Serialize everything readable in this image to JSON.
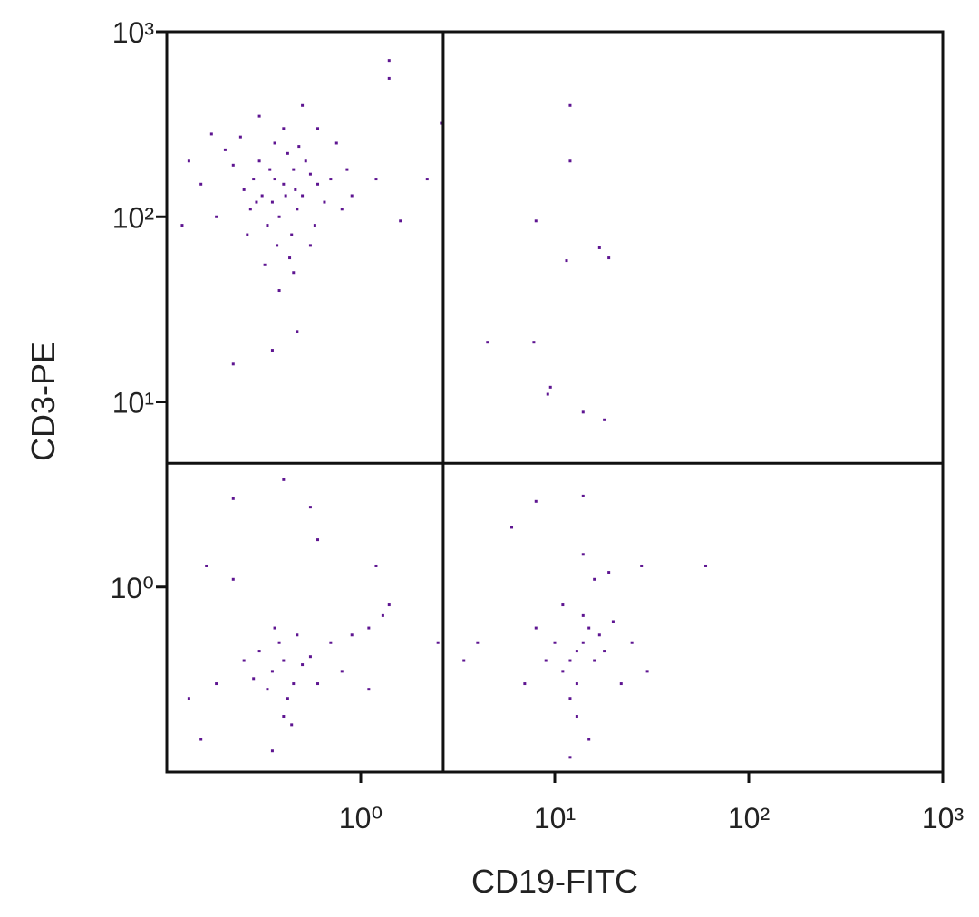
{
  "chart_data": {
    "type": "scatter",
    "x_label": "CD19-FITC",
    "y_label": "CD3-PE",
    "xscale": "log",
    "yscale": "log",
    "xlim": [
      0.1,
      1000
    ],
    "ylim": [
      0.1,
      1000
    ],
    "xticks": [
      {
        "value": 1,
        "label": "10⁰"
      },
      {
        "value": 10,
        "label": "10¹"
      },
      {
        "value": 100,
        "label": "10²"
      },
      {
        "value": 1000,
        "label": "10³"
      }
    ],
    "yticks": [
      {
        "value": 1,
        "label": "10⁰"
      },
      {
        "value": 10,
        "label": "10¹"
      },
      {
        "value": 100,
        "label": "10²"
      },
      {
        "value": 1000,
        "label": "10³"
      }
    ],
    "quadrant_gates": {
      "x": 2.66,
      "y": 4.66
    },
    "color": "#5e1591",
    "x": [
      0.4,
      0.35,
      0.45,
      0.3,
      0.5,
      0.38,
      0.42,
      0.28,
      0.55,
      0.33,
      0.47,
      0.25,
      0.6,
      0.36,
      0.44,
      0.31,
      0.52,
      0.4,
      0.22,
      0.65,
      0.37,
      0.48,
      0.27,
      0.58,
      0.34,
      0.43,
      0.2,
      0.7,
      0.15,
      0.18,
      0.13,
      0.75,
      0.8,
      0.3,
      0.5,
      0.26,
      0.45,
      0.38,
      0.6,
      0.17,
      0.12,
      0.85,
      0.32,
      0.9,
      0.24,
      0.55,
      0.41,
      0.36,
      0.46,
      0.29,
      1.4,
      1.4,
      2.6,
      2.2,
      1.6,
      0.22,
      0.35,
      0.47,
      1.2,
      12,
      12,
      8,
      17,
      19,
      11.5,
      4.5,
      7.8,
      9.5,
      9.2,
      14,
      18,
      0.4,
      0.35,
      0.45,
      0.3,
      0.5,
      0.42,
      0.38,
      0.28,
      0.55,
      0.33,
      0.47,
      0.25,
      0.6,
      0.4,
      0.36,
      0.44,
      0.7,
      0.9,
      1.1,
      1.3,
      1.4,
      0.15,
      0.18,
      0.13,
      0.8,
      0.22,
      0.4,
      0.55,
      0.6,
      1.2,
      0.16,
      0.35,
      2.5,
      1.1,
      0.22,
      13,
      12,
      14,
      11,
      15,
      13,
      16,
      10,
      17,
      12,
      14,
      11,
      18,
      13,
      15,
      12,
      20,
      9,
      8,
      22,
      16,
      14,
      7,
      25,
      30,
      19,
      60,
      14,
      8,
      6,
      4,
      3.4,
      28
    ],
    "y": [
      150,
      120,
      180,
      200,
      130,
      100,
      220,
      160,
      170,
      90,
      110,
      140,
      150,
      250,
      80,
      130,
      200,
      300,
      190,
      120,
      70,
      240,
      110,
      90,
      180,
      60,
      230,
      160,
      150,
      100,
      200,
      250,
      110,
      350,
      400,
      80,
      50,
      40,
      300,
      280,
      90,
      180,
      55,
      130,
      270,
      70,
      130,
      160,
      140,
      120,
      700,
      560,
      320,
      160,
      95,
      16,
      19,
      24,
      160,
      400,
      200,
      95,
      68,
      60,
      58,
      21,
      21,
      12,
      11,
      8.8,
      8,
      0.4,
      0.35,
      0.3,
      0.45,
      0.38,
      0.25,
      0.5,
      0.32,
      0.42,
      0.28,
      0.55,
      0.4,
      0.3,
      0.2,
      0.6,
      0.18,
      0.5,
      0.55,
      0.6,
      0.7,
      0.8,
      0.15,
      0.3,
      0.25,
      0.35,
      3,
      3.8,
      2.7,
      1.8,
      1.3,
      1.3,
      0.13,
      0.5,
      0.28,
      1.1,
      0.45,
      0.4,
      0.5,
      0.35,
      0.6,
      0.3,
      0.4,
      0.5,
      0.55,
      0.25,
      0.7,
      0.8,
      0.45,
      0.2,
      0.15,
      0.12,
      0.65,
      0.4,
      0.6,
      0.3,
      1.1,
      1.5,
      0.3,
      0.5,
      0.35,
      1.2,
      1.3,
      3.1,
      2.9,
      2.1,
      0.5,
      0.4,
      1.3
    ]
  }
}
